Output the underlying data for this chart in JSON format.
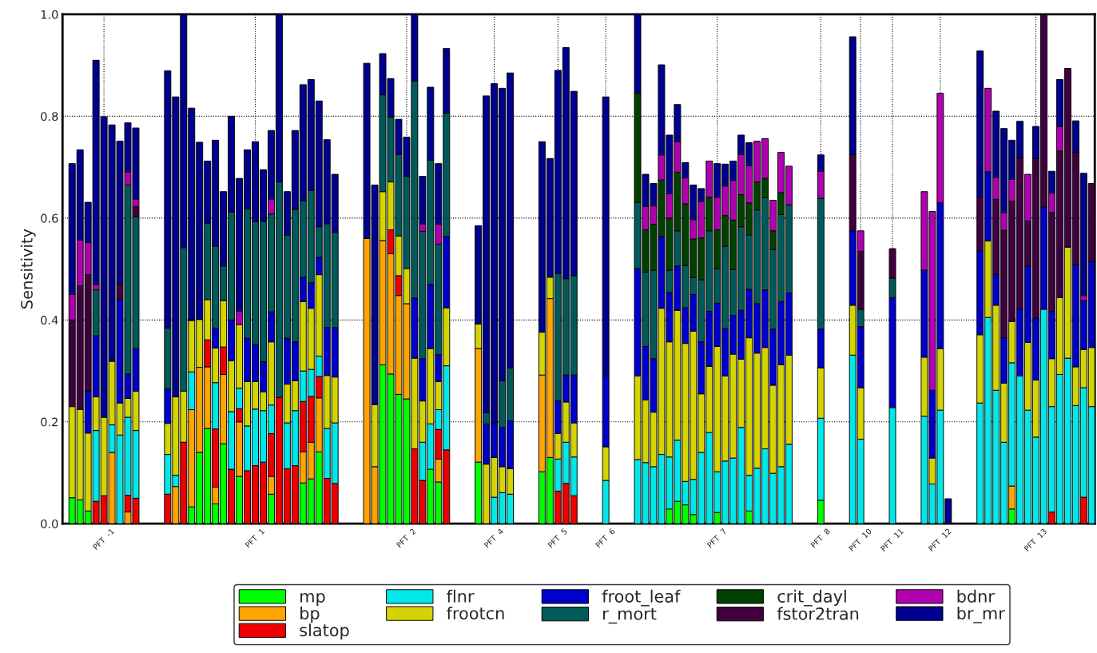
{
  "chart_data": {
    "type": "bar",
    "stacked": true,
    "ylabel": "Sensitivity",
    "categories": [
      null,
      null,
      null,
      null,
      "PFT  -1",
      null,
      null,
      null,
      null,
      null,
      null,
      null,
      null,
      null,
      null,
      null,
      null,
      null,
      null,
      null,
      null,
      null,
      null,
      "PFT  1",
      null,
      null,
      null,
      null,
      null,
      null,
      null,
      null,
      null,
      null,
      null,
      null,
      null,
      null,
      null,
      null,
      null,
      null,
      "PFT  2",
      null,
      null,
      null,
      null,
      null,
      null,
      null,
      null,
      null,
      null,
      "PFT  4",
      null,
      null,
      null,
      null,
      null,
      null,
      null,
      "PFT  5",
      null,
      null,
      null,
      null,
      null,
      "PFT  6",
      null,
      null,
      null,
      null,
      null,
      null,
      null,
      null,
      null,
      null,
      null,
      null,
      null,
      "PFT  7",
      null,
      null,
      null,
      null,
      null,
      null,
      null,
      null,
      null,
      null,
      null,
      null,
      "PFT  8",
      null,
      null,
      null,
      null,
      "PFT  10",
      null,
      null,
      null,
      "PFT  11",
      null,
      null,
      null,
      null,
      null,
      "PFT  12",
      null,
      null,
      null,
      null,
      null,
      null,
      null,
      null,
      null,
      null,
      null,
      "PFT  13",
      null,
      null,
      null,
      null,
      null,
      null,
      null
    ],
    "ylim": [
      0,
      1
    ],
    "yticks": [
      {
        "value": 0,
        "label": "0.0"
      },
      {
        "value": 0.2,
        "label": "0.2"
      },
      {
        "value": 0.4,
        "label": "0.4"
      },
      {
        "value": 0.6,
        "label": "0.6"
      },
      {
        "value": 0.8,
        "label": "0.8"
      },
      {
        "value": 1,
        "label": "1.0"
      }
    ],
    "grid": true,
    "legend": "bottom",
    "series": [
      {
        "name": "mp",
        "color": "#00ff00",
        "values": [
          0.051,
          0.047,
          0.025,
          null,
          null,
          null,
          null,
          null,
          null,
          null,
          null,
          null,
          null,
          null,
          null,
          0.033,
          0.14,
          0.187,
          0.039,
          0.157,
          null,
          0.093,
          null,
          null,
          null,
          0.058,
          null,
          null,
          null,
          0.08,
          0.088,
          0.141,
          null,
          null,
          null,
          null,
          null,
          null,
          null,
          0.312,
          0.294,
          0.254,
          0.245,
          null,
          null,
          0.107,
          0.082,
          null,
          null,
          null,
          null,
          0.121,
          null,
          null,
          null,
          null,
          null,
          null,
          null,
          0.102,
          0.13,
          null,
          null,
          null,
          null,
          null,
          null,
          null,
          null,
          null,
          null,
          null,
          null,
          null,
          null,
          0.029,
          0.044,
          0.037,
          0.018,
          null,
          null,
          0.022,
          null,
          null,
          null,
          0.025,
          null,
          null,
          null,
          null,
          null,
          null,
          null,
          null,
          0.046,
          null,
          null,
          null,
          null,
          null,
          null,
          null,
          null,
          null,
          null,
          null,
          null,
          null,
          null,
          null,
          null,
          null,
          null,
          null,
          null,
          null,
          null,
          null,
          0.029,
          null,
          null,
          null,
          null,
          null,
          null,
          null,
          null,
          null,
          null
        ]
      },
      {
        "name": "bp",
        "color": "#ffa500",
        "values": [
          null,
          null,
          null,
          null,
          null,
          0.14,
          null,
          0.023,
          null,
          null,
          null,
          null,
          null,
          0.073,
          null,
          0.191,
          0.167,
          0.121,
          0.033,
          0.136,
          null,
          0.107,
          null,
          null,
          null,
          0.035,
          null,
          null,
          null,
          0.061,
          0.072,
          0.106,
          null,
          null,
          null,
          null,
          null,
          0.56,
          0.112,
          0.244,
          0.236,
          0.194,
          0.187,
          null,
          null,
          null,
          0.045,
          null,
          null,
          null,
          null,
          0.223,
          null,
          null,
          null,
          null,
          null,
          null,
          null,
          0.19,
          0.312,
          null,
          null,
          null,
          null,
          null,
          null,
          null,
          null,
          null,
          null,
          null,
          null,
          null,
          null,
          null,
          null,
          null,
          null,
          null,
          null,
          null,
          null,
          null,
          null,
          null,
          null,
          null,
          null,
          null,
          null,
          null,
          null,
          null,
          null,
          null,
          null,
          null,
          null,
          null,
          null,
          null,
          null,
          null,
          null,
          null,
          null,
          null,
          null,
          null,
          null,
          null,
          null,
          null,
          null,
          null,
          null,
          null,
          0.045,
          null,
          null,
          null,
          null,
          null,
          null,
          null,
          null,
          null,
          null
        ]
      },
      {
        "name": "slatop",
        "color": "#ee0000",
        "values": [
          null,
          null,
          null,
          0.044,
          0.055,
          null,
          null,
          0.033,
          0.05,
          null,
          null,
          null,
          0.058,
          null,
          0.16,
          null,
          null,
          0.053,
          0.114,
          0.054,
          0.107,
          0.026,
          0.104,
          0.114,
          0.121,
          0.084,
          0.248,
          0.108,
          0.114,
          0.099,
          0.09,
          0.042,
          0.089,
          0.079,
          null,
          null,
          null,
          null,
          null,
          null,
          0.047,
          0.039,
          null,
          0.147,
          0.085,
          null,
          0.058,
          0.145,
          null,
          null,
          null,
          null,
          null,
          null,
          null,
          null,
          null,
          null,
          null,
          null,
          null,
          0.064,
          0.079,
          0.055,
          null,
          null,
          null,
          null,
          null,
          null,
          null,
          null,
          null,
          null,
          null,
          null,
          null,
          null,
          null,
          null,
          null,
          null,
          null,
          null,
          null,
          null,
          null,
          null,
          null,
          null,
          null,
          null,
          null,
          null,
          null,
          null,
          null,
          null,
          null,
          null,
          null,
          null,
          null,
          null,
          null,
          null,
          null,
          null,
          null,
          null,
          null,
          null,
          null,
          null,
          null,
          null,
          null,
          null,
          null,
          null,
          null,
          null,
          null,
          0.023,
          null,
          null,
          null,
          0.052,
          null
        ]
      },
      {
        "name": "flnr",
        "color": "#00e8e8",
        "values": [
          null,
          null,
          null,
          0.139,
          null,
          0.054,
          0.174,
          0.153,
          0.133,
          null,
          null,
          null,
          0.078,
          0.022,
          null,
          0.074,
          null,
          null,
          0.091,
          null,
          0.113,
          0.04,
          0.088,
          0.111,
          0.101,
          0.056,
          null,
          0.09,
          0.108,
          0.06,
          0.053,
          0.04,
          0.098,
          0.119,
          null,
          null,
          null,
          null,
          null,
          null,
          null,
          null,
          null,
          null,
          0.075,
          0.089,
          0.039,
          0.165,
          null,
          null,
          null,
          null,
          null,
          0.052,
          0.061,
          0.058,
          null,
          null,
          null,
          null,
          null,
          0.063,
          0.081,
          0.076,
          null,
          null,
          null,
          0.085,
          null,
          null,
          null,
          0.126,
          0.12,
          0.112,
          0.136,
          0.102,
          0.12,
          0.046,
          0.069,
          0.14,
          0.179,
          0.08,
          0.123,
          0.129,
          0.189,
          0.07,
          0.109,
          0.147,
          0.099,
          0.112,
          0.156,
          null,
          null,
          null,
          0.161,
          null,
          null,
          null,
          0.331,
          0.166,
          null,
          null,
          null,
          0.228,
          null,
          null,
          null,
          0.211,
          0.078,
          0.223,
          null,
          null,
          null,
          null,
          0.237,
          0.405,
          0.262,
          0.16,
          0.242,
          0.29,
          0.223,
          0.17,
          0.421,
          0.207,
          0.293,
          0.325,
          0.232,
          0.215,
          0.23
        ]
      },
      {
        "name": "frootcn",
        "color": "#d4d400",
        "values": [
          0.179,
          0.177,
          0.153,
          0.066,
          0.154,
          0.125,
          0.063,
          0.037,
          0.077,
          null,
          null,
          null,
          0.061,
          0.154,
          0.1,
          0.101,
          0.094,
          0.079,
          0.068,
          0.091,
          0.1,
          0.125,
          0.087,
          0.054,
          0.037,
          0.124,
          null,
          0.076,
          0.059,
          0.136,
          0.12,
          0.16,
          0.104,
          0.09,
          null,
          null,
          null,
          null,
          0.122,
          0.096,
          0.094,
          0.078,
          0.069,
          0.178,
          0.081,
          0.148,
          0.055,
          0.114,
          null,
          null,
          null,
          0.048,
          0.117,
          0.078,
          0.051,
          0.05,
          null,
          null,
          null,
          0.084,
          0.042,
          0.05,
          0.079,
          0.067,
          null,
          null,
          null,
          0.066,
          null,
          null,
          null,
          0.164,
          0.123,
          0.107,
          0.287,
          0.226,
          0.255,
          0.271,
          0.291,
          0.115,
          0.13,
          0.246,
          0.167,
          0.204,
          0.134,
          0.27,
          0.226,
          0.199,
          0.173,
          0.2,
          0.175,
          null,
          null,
          null,
          0.099,
          null,
          null,
          null,
          0.098,
          0.101,
          null,
          null,
          null,
          null,
          null,
          null,
          null,
          0.116,
          0.051,
          0.121,
          null,
          null,
          null,
          null,
          0.134,
          0.15,
          0.167,
          0.116,
          0.081,
          null,
          0.133,
          0.112,
          null,
          0.094,
          0.151,
          0.218,
          0.076,
          0.075,
          0.116
        ]
      },
      {
        "name": "froot_leaf",
        "color": "#0000cc",
        "values": [
          null,
          null,
          0.082,
          0.12,
          null,
          null,
          0.203,
          0.048,
          0.084,
          null,
          null,
          null,
          0.068,
          null,
          null,
          null,
          null,
          null,
          0.039,
          null,
          0.08,
          null,
          0.085,
          0.073,
          0.059,
          0.059,
          null,
          0.09,
          0.076,
          0.048,
          0.05,
          0.034,
          0.094,
          0.097,
          null,
          null,
          null,
          null,
          null,
          null,
          null,
          null,
          null,
          0.118,
          0.083,
          0.126,
          0.053,
          0.14,
          null,
          null,
          null,
          null,
          0.079,
          0.066,
          0.077,
          0.094,
          null,
          null,
          null,
          null,
          null,
          0.064,
          0.053,
          0.094,
          null,
          null,
          null,
          0.139,
          null,
          null,
          null,
          0.211,
          0.105,
          0.105,
          0.141,
          0.097,
          0.087,
          0.07,
          0.072,
          0.102,
          0.108,
          0.085,
          0.093,
          0.076,
          0.096,
          0.095,
          0.097,
          0.113,
          0.11,
          0.124,
          0.122,
          null,
          null,
          null,
          0.076,
          null,
          null,
          null,
          0.146,
          0.12,
          null,
          null,
          null,
          0.216,
          null,
          null,
          null,
          0.171,
          0.133,
          0.286,
          null,
          null,
          null,
          null,
          0.165,
          0.136,
          0.06,
          0.089,
          null,
          0.132,
          0.15,
          0.122,
          0.201,
          0.093,
          null,
          null,
          0.201,
          0.096,
          0.169
        ]
      },
      {
        "name": "r_mort",
        "color": "#005a5a",
        "values": [
          null,
          null,
          null,
          0.09,
          null,
          null,
          null,
          0.371,
          0.259,
          null,
          null,
          null,
          0.119,
          null,
          0.282,
          null,
          null,
          0.15,
          0.161,
          0.068,
          0.212,
          null,
          0.254,
          0.241,
          0.275,
          0.192,
          0.423,
          0.203,
          0.26,
          0.15,
          0.181,
          0.06,
          0.204,
          0.187,
          null,
          null,
          null,
          null,
          null,
          0.19,
          0.127,
          0.16,
          0.181,
          0.426,
          0.25,
          0.244,
          0.217,
          0.242,
          null,
          null,
          null,
          null,
          0.022,
          null,
          0.092,
          0.104,
          null,
          null,
          null,
          null,
          null,
          0.25,
          0.189,
          0.195,
          null,
          null,
          null,
          null,
          null,
          null,
          null,
          0.13,
          0.146,
          0.174,
          null,
          0.044,
          0.069,
          0.083,
          0.033,
          0.122,
          0.158,
          0.068,
          0.162,
          0.09,
          0.164,
          0.107,
          0.184,
          0.181,
          0.156,
          0.171,
          0.173,
          null,
          null,
          null,
          0.257,
          null,
          null,
          null,
          null,
          0.034,
          null,
          null,
          null,
          0.038,
          null,
          null,
          null,
          null,
          null,
          null,
          null,
          null,
          null,
          null,
          null,
          null,
          null,
          null,
          null,
          null,
          null,
          null,
          null,
          null,
          null,
          null,
          null,
          null,
          null
        ]
      },
      {
        "name": "crit_dayl",
        "color": "#004000",
        "values": [
          null,
          null,
          null,
          null,
          null,
          null,
          null,
          null,
          null,
          null,
          null,
          null,
          null,
          null,
          null,
          null,
          null,
          null,
          null,
          null,
          null,
          null,
          null,
          null,
          null,
          null,
          null,
          null,
          null,
          null,
          null,
          null,
          null,
          null,
          null,
          null,
          null,
          null,
          null,
          null,
          null,
          null,
          null,
          null,
          null,
          null,
          null,
          null,
          null,
          null,
          null,
          null,
          null,
          null,
          null,
          null,
          null,
          null,
          null,
          null,
          null,
          null,
          null,
          null,
          null,
          null,
          null,
          null,
          null,
          null,
          null,
          0.215,
          0.083,
          0.09,
          0.111,
          0.102,
          0.115,
          0.121,
          0.076,
          0.082,
          0.066,
          0.076,
          0.06,
          0.097,
          0.063,
          0.063,
          0.055,
          0.038,
          0.037,
          0.043,
          null,
          null,
          null,
          null,
          null,
          null,
          null,
          null,
          null,
          null,
          null,
          null,
          null,
          null,
          null,
          null,
          null,
          null,
          null,
          null,
          null,
          null,
          null,
          null,
          null,
          null,
          null,
          null,
          null,
          null,
          null,
          null,
          null,
          null,
          null,
          null,
          null,
          null,
          null
        ]
      },
      {
        "name": "fstor2tran",
        "color": "#400040",
        "values": [
          0.17,
          0.243,
          0.229,
          null,
          null,
          null,
          0.03,
          null,
          0.02,
          null,
          null,
          null,
          null,
          null,
          null,
          null,
          null,
          null,
          null,
          null,
          null,
          null,
          null,
          null,
          null,
          null,
          null,
          null,
          null,
          null,
          null,
          null,
          null,
          null,
          null,
          null,
          null,
          null,
          null,
          null,
          null,
          null,
          null,
          null,
          null,
          null,
          null,
          null,
          null,
          null,
          null,
          null,
          null,
          null,
          null,
          null,
          null,
          null,
          null,
          null,
          null,
          null,
          null,
          null,
          null,
          null,
          null,
          null,
          null,
          null,
          null,
          null,
          null,
          null,
          null,
          null,
          null,
          null,
          null,
          null,
          null,
          null,
          null,
          null,
          null,
          null,
          null,
          null,
          null,
          null,
          null,
          null,
          null,
          null,
          null,
          null,
          null,
          null,
          0.15,
          0.114,
          null,
          null,
          null,
          0.058,
          null,
          null,
          null,
          null,
          null,
          null,
          null,
          null,
          null,
          null,
          0.105,
          null,
          0.148,
          0.211,
          0.236,
          0.296,
          0.088,
          0.313,
          0.378,
          0.194,
          0.288,
          0.351,
          0.22,
          null,
          0.153
        ]
      },
      {
        "name": "bdnr",
        "color": "#b000b0",
        "values": [
          0.05,
          0.09,
          0.063,
          0.011,
          null,
          null,
          null,
          0.026,
          0.014,
          null,
          null,
          null,
          null,
          null,
          null,
          null,
          null,
          null,
          null,
          null,
          null,
          0.026,
          null,
          null,
          null,
          0.029,
          null,
          null,
          null,
          null,
          null,
          null,
          null,
          null,
          null,
          null,
          null,
          null,
          null,
          null,
          null,
          null,
          null,
          null,
          0.015,
          null,
          0.039,
          null,
          null,
          null,
          null,
          null,
          null,
          null,
          null,
          null,
          null,
          null,
          null,
          null,
          null,
          null,
          null,
          null,
          null,
          null,
          null,
          null,
          null,
          null,
          null,
          null,
          0.046,
          0.036,
          0.049,
          0.048,
          0.06,
          0.051,
          0.038,
          0.072,
          0.071,
          0.064,
          0.058,
          0.078,
          0.079,
          0.073,
          0.08,
          0.078,
          0.06,
          0.079,
          0.076,
          null,
          null,
          null,
          0.053,
          null,
          null,
          null,
          null,
          0.04,
          null,
          null,
          null,
          null,
          null,
          null,
          null,
          0.154,
          0.351,
          0.215,
          null,
          null,
          null,
          null,
          null,
          0.164,
          0.043,
          0.035,
          0.043,
          null,
          0.092,
          null,
          null,
          0.038,
          0.048,
          null,
          null,
          0.01,
          null
        ]
      },
      {
        "name": "br_mr",
        "color": "#000090",
        "values": [
          0.257,
          0.177,
          0.079,
          0.44,
          0.59,
          0.464,
          0.281,
          0.096,
          0.14,
          null,
          null,
          null,
          0.505,
          0.589,
          0.458,
          0.417,
          0.348,
          0.122,
          0.208,
          0.146,
          0.188,
          0.261,
          0.116,
          0.157,
          0.102,
          0.135,
          0.329,
          0.085,
          0.155,
          0.228,
          0.218,
          0.247,
          0.165,
          0.114,
          null,
          null,
          null,
          0.344,
          0.431,
          0.081,
          0.076,
          0.069,
          0.077,
          0.131,
          0.093,
          0.143,
          0.119,
          0.127,
          null,
          null,
          null,
          0.193,
          0.622,
          0.668,
          0.574,
          0.579,
          null,
          null,
          null,
          0.374,
          0.233,
          0.399,
          0.454,
          0.362,
          null,
          null,
          null,
          0.548,
          null,
          null,
          null,
          0.154,
          0.063,
          0.044,
          0.177,
          0.115,
          0.073,
          0.03,
          0.068,
          0.025,
          null,
          0.066,
          0.043,
          0.038,
          0.038,
          0.045,
          null,
          null,
          null,
          null,
          null,
          null,
          null,
          null,
          0.032,
          null,
          null,
          null,
          0.231,
          null,
          null,
          null,
          null,
          null,
          null,
          null,
          null,
          null,
          null,
          null,
          0.049,
          null,
          null,
          null,
          0.287,
          null,
          0.13,
          0.165,
          0.077,
          0.072,
          null,
          0.063,
          null,
          0.043,
          0.092,
          null,
          0.062,
          0.24,
          null
        ]
      }
    ]
  }
}
